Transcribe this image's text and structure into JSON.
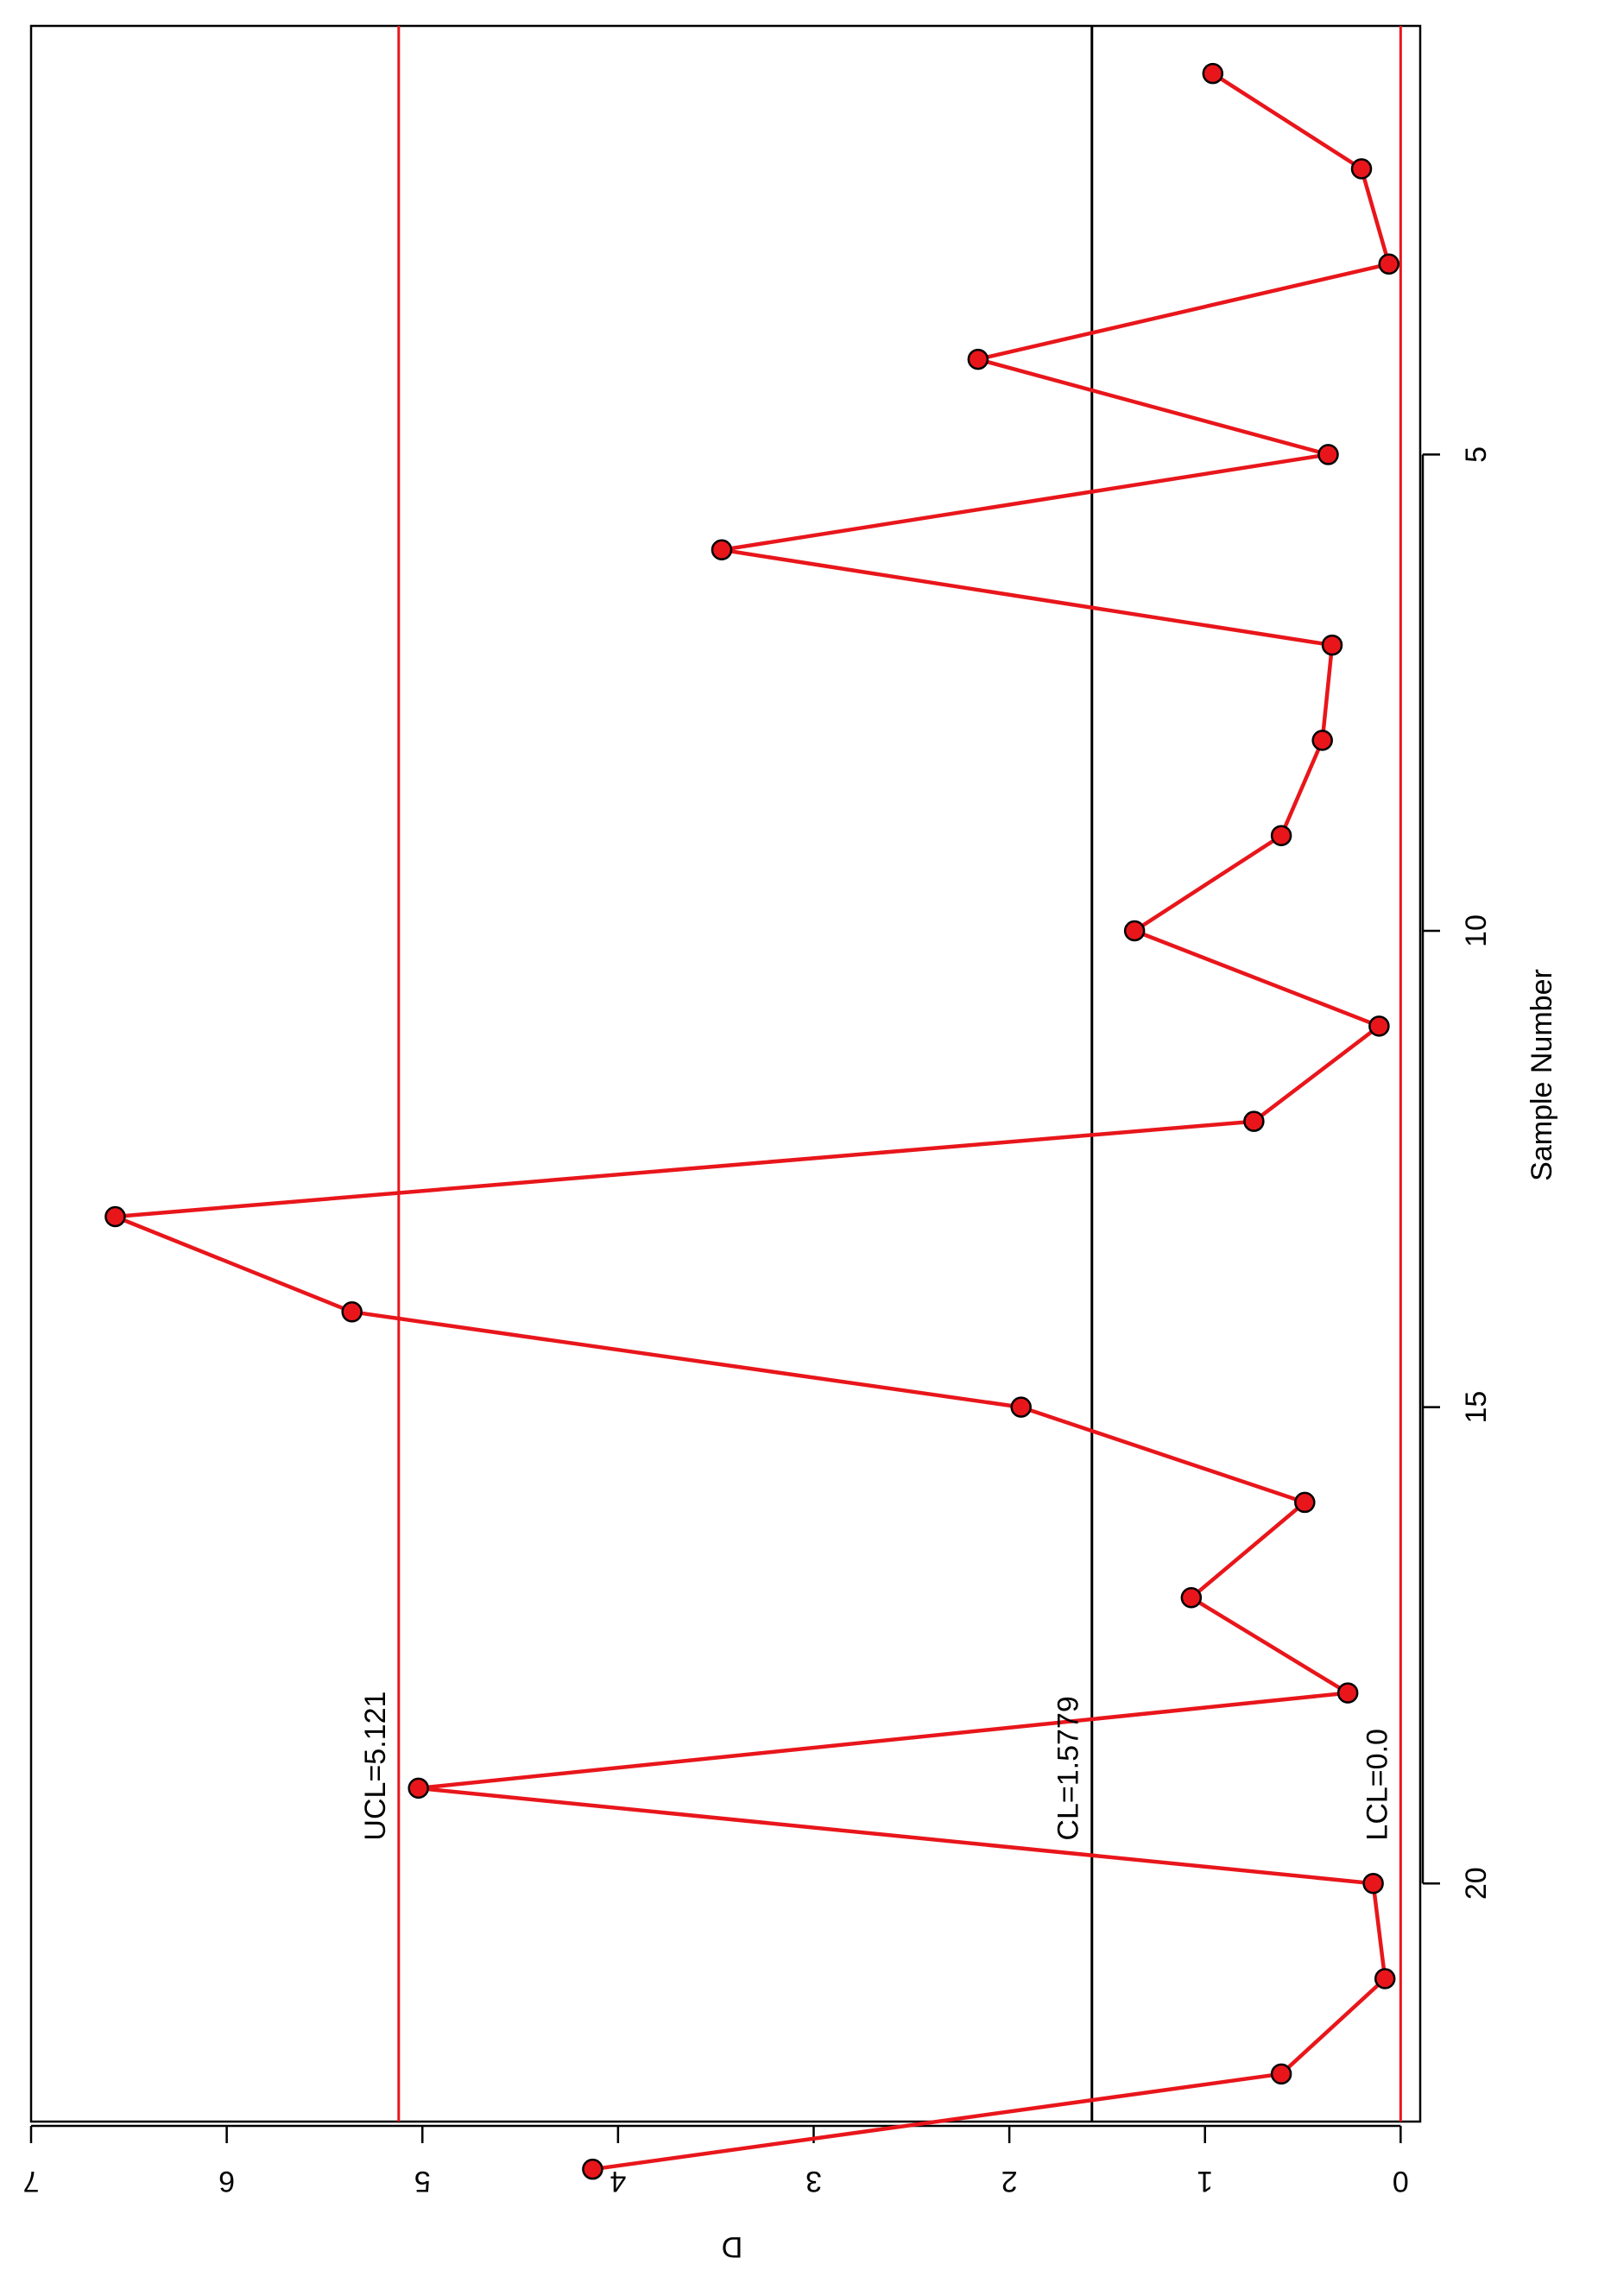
{
  "chart_data": {
    "type": "line",
    "orientation": "rotated-90-clockwise",
    "title": "",
    "xlabel": "Sample Number",
    "ylabel": "D",
    "xlim": [
      0.5,
      22.5
    ],
    "ylim": [
      -0.1,
      7.0
    ],
    "x_ticks": [
      5,
      10,
      15,
      20
    ],
    "y_ticks": [
      0,
      1,
      2,
      3,
      4,
      5,
      6,
      7
    ],
    "control_lines": [
      {
        "name": "UCL",
        "label": "UCL=5.121",
        "value": 5.121,
        "color": "#e8161b"
      },
      {
        "name": "CL",
        "label": "CL=1.5779",
        "value": 1.5779,
        "color": "#000000"
      },
      {
        "name": "LCL",
        "label": "LCL=0.0",
        "value": 0.0,
        "color": "#e8161b"
      }
    ],
    "series": [
      {
        "color": "#e8161b",
        "marker_edge": "#000000",
        "x": [
          1,
          2,
          3,
          4,
          5,
          6,
          7,
          8,
          9,
          10,
          11,
          12,
          13,
          14,
          15,
          16,
          17,
          18,
          19,
          20,
          21,
          22,
          23
        ],
        "y": [
          0.96,
          0.2,
          0.06,
          2.16,
          0.37,
          3.47,
          0.35,
          0.4,
          0.61,
          1.36,
          0.11,
          0.75,
          6.57,
          5.36,
          1.94,
          0.49,
          1.07,
          0.27,
          5.02,
          0.14,
          0.08,
          0.61,
          4.13
        ]
      }
    ]
  }
}
